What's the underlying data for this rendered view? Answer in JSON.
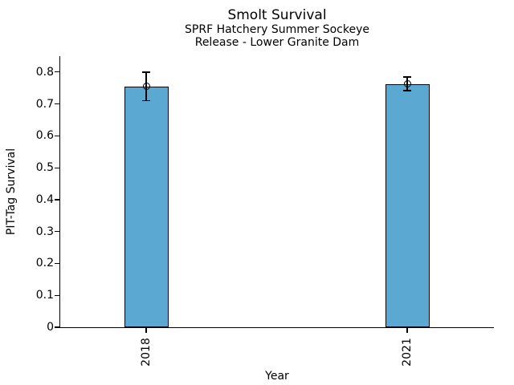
{
  "chart_data": {
    "type": "bar",
    "title": "Smolt Survival",
    "subtitle_lines": [
      "SPRF Hatchery Summer Sockeye",
      "Release - Lower Granite Dam"
    ],
    "categories": [
      "2018",
      "2021"
    ],
    "values": [
      0.755,
      0.763
    ],
    "error_low": [
      0.71,
      0.742
    ],
    "error_high": [
      0.8,
      0.785
    ],
    "xlabel": "Year",
    "ylabel": "PIT-Tag Survival",
    "ylim": [
      0,
      0.85
    ],
    "yticks": [
      0,
      0.1,
      0.2,
      0.3,
      0.4,
      0.5,
      0.6,
      0.7,
      0.8
    ],
    "ytick_labels": [
      "0",
      "0.1",
      "0.2",
      "0.3",
      "0.4",
      "0.5",
      "0.6",
      "0.7",
      "0.8"
    ],
    "xtick_label_rotation_deg": 90,
    "grid": false,
    "legend": null,
    "marker": "open-circle",
    "colors": {
      "bar_fill": "#5BA8D3",
      "bar_edge": "#000000",
      "error_bar": "#000000",
      "marker_edge": "#000000",
      "text": "#000000",
      "background": "#FFFFFF"
    }
  }
}
